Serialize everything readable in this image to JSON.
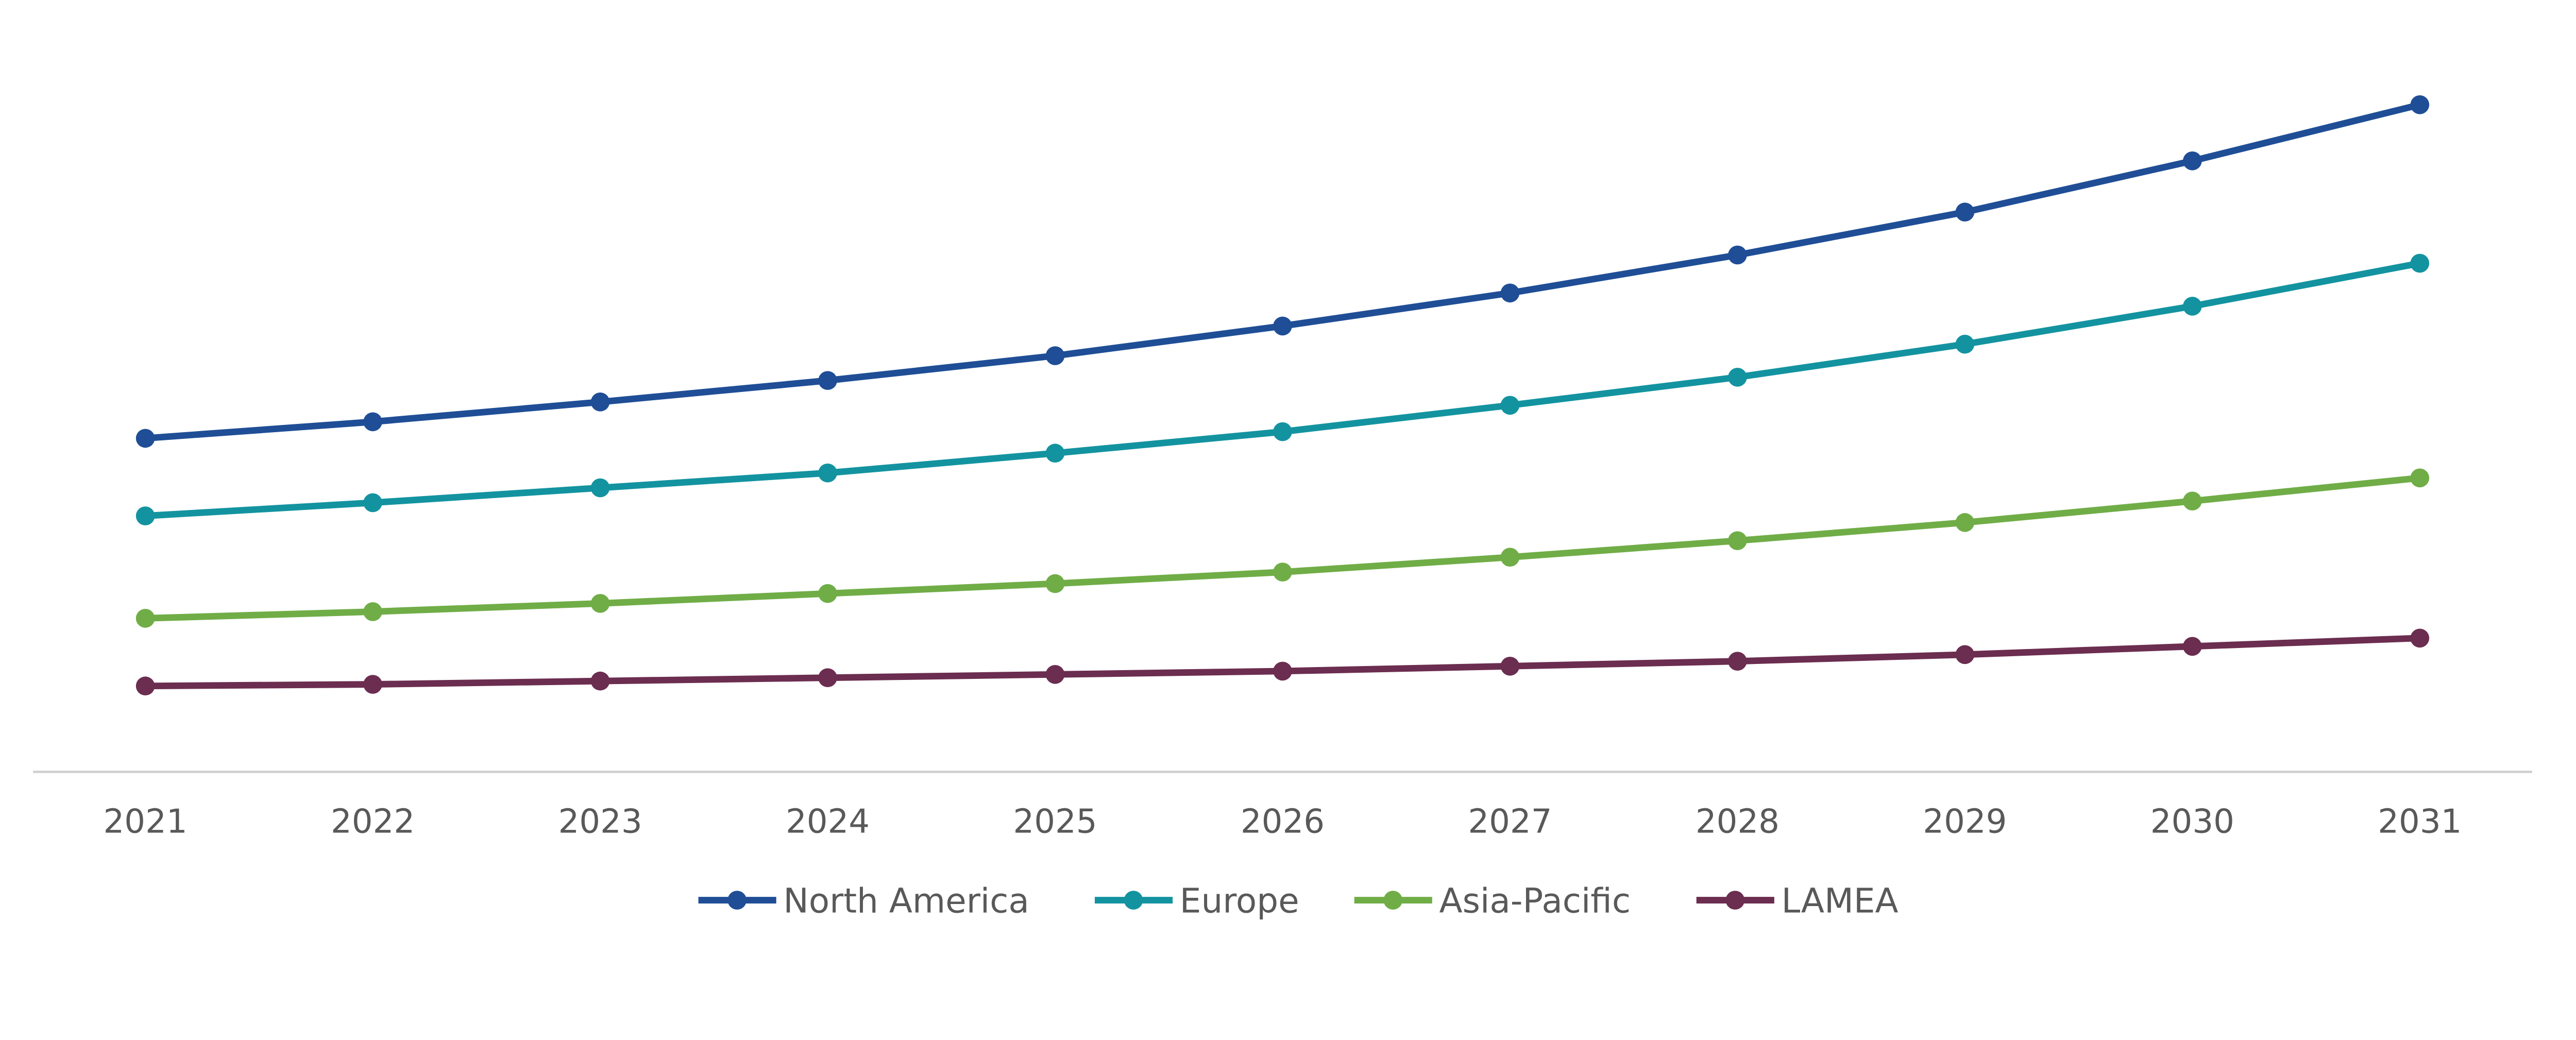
{
  "chart_data": {
    "type": "line",
    "title": "",
    "xlabel": "",
    "ylabel": "",
    "y_axis_shown": false,
    "ylim": [
      0,
      420
    ],
    "grid": false,
    "legend_position": "bottom",
    "categories": [
      "2021",
      "2022",
      "2023",
      "2024",
      "2025",
      "2026",
      "2027",
      "2028",
      "2029",
      "2030",
      "2031"
    ],
    "series": [
      {
        "name": "North America",
        "color": "#1F4E96",
        "values": [
          202,
          212,
          224,
          237,
          252,
          270,
          290,
          313,
          339,
          370,
          404
        ]
      },
      {
        "name": "Europe",
        "color": "#1393A0",
        "values": [
          155,
          163,
          172,
          181,
          193,
          206,
          222,
          239,
          259,
          282,
          308
        ]
      },
      {
        "name": "Asia-Pacific",
        "color": "#70AD47",
        "values": [
          93,
          97,
          102,
          108,
          114,
          121,
          130,
          140,
          151,
          164,
          178
        ]
      },
      {
        "name": "LAMEA",
        "color": "#6B2D50",
        "values": [
          52,
          53,
          55,
          57,
          59,
          61,
          64,
          67,
          71,
          76,
          81
        ]
      }
    ]
  }
}
